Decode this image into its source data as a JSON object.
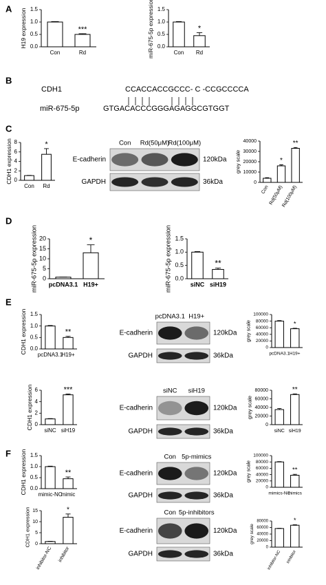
{
  "panels": [
    "A",
    "B",
    "C",
    "D",
    "E",
    "F"
  ],
  "sequence": {
    "rows": [
      {
        "name": "CDH1",
        "seq": "CCACCACCGCCC- C -CCGCCCCA"
      },
      {
        "name": "miR-675-5p",
        "seq": "GTGACACCCGGGAGAGGCGTGGT"
      }
    ]
  },
  "blots": [
    {
      "lanes": [
        "Con",
        "Rd(50μM)",
        "Rd(100μM)"
      ],
      "rows": [
        "E-cadherin",
        "GAPDH"
      ],
      "sizes": [
        "120kDa",
        "36kDa"
      ]
    },
    {
      "lanes": [
        "pcDNA3.1",
        "H19+"
      ],
      "rows": [
        "E-cadherin",
        "GAPDH"
      ],
      "sizes": [
        "120kDa",
        "36kDa"
      ]
    },
    {
      "lanes": [
        "siNC",
        "siH19"
      ],
      "rows": [
        "E-cadherin",
        "GAPDH"
      ],
      "sizes": [
        "120kDa",
        "36kDa"
      ]
    },
    {
      "lanes": [
        "Con",
        "5p-mimics"
      ],
      "rows": [
        "E-cadherin",
        "GAPDH"
      ],
      "sizes": [
        "120kDa",
        "36kDa"
      ]
    },
    {
      "lanes": [
        "Con",
        "5p-inhibitors"
      ],
      "rows": [
        "E-cadherin",
        "GAPDH"
      ],
      "sizes": [
        "120kDa",
        "36kDa"
      ]
    }
  ],
  "chart_data": [
    {
      "type": "bar",
      "y_label": "H19 expression",
      "categories": [
        "Con",
        "Rd"
      ],
      "values": [
        1.0,
        0.5
      ],
      "errors": [
        0.02,
        0.03
      ],
      "significance": [
        null,
        "***"
      ],
      "color": "#ffffff",
      "ylim": [
        0,
        1.5
      ],
      "yticks": [
        {
          "value": 0,
          "label": "0.0"
        },
        0.5,
        {
          "value": 1,
          "label": "1.0"
        },
        1.5
      ]
    },
    {
      "type": "bar",
      "y_label": "miR-675-5p expression",
      "categories": [
        "Con",
        "Rd"
      ],
      "values": [
        1.0,
        0.45
      ],
      "errors": [
        0.02,
        0.12
      ],
      "significance": [
        null,
        "*"
      ],
      "color": "#ffffff",
      "ylim": [
        0,
        1.5
      ],
      "yticks": [
        {
          "value": 0,
          "label": "0.0"
        },
        0.5,
        {
          "value": 1,
          "label": "1.0"
        },
        1.5
      ]
    },
    {
      "type": "bar",
      "y_label": "CDH1 expression",
      "categories": [
        "Con",
        "Rd"
      ],
      "values": [
        1.0,
        5.5
      ],
      "errors": [
        0.05,
        1.2
      ],
      "significance": [
        null,
        "*"
      ],
      "color": "#ffffff",
      "ylim": [
        0,
        8
      ],
      "yticks": [
        0,
        2,
        4,
        6,
        8
      ]
    },
    {
      "type": "bar",
      "y_label": "grey scale",
      "categories": [
        "Con",
        "Rd(50μM)",
        "Rd(100μM)"
      ],
      "values": [
        4000,
        16000,
        33000
      ],
      "errors": [
        500,
        1000,
        800
      ],
      "significance": [
        null,
        "*",
        "**"
      ],
      "color": "#ffffff",
      "ylim": [
        0,
        40000
      ],
      "yticks": [
        0,
        10000,
        20000,
        30000,
        40000
      ]
    },
    {
      "type": "bar",
      "y_label": "miR-675-5p expression",
      "categories": [
        "pcDNA3.1",
        "H19+"
      ],
      "values": [
        0.8,
        13
      ],
      "errors": [
        0.1,
        4
      ],
      "significance": [
        null,
        "*"
      ],
      "color": "#ffffff",
      "ylim": [
        0,
        20
      ],
      "yticks": [
        0,
        5,
        10,
        15,
        20
      ]
    },
    {
      "type": "bar",
      "y_label": "miR-675-5p expression",
      "categories": [
        "siNC",
        "siH19"
      ],
      "values": [
        1.0,
        0.35
      ],
      "errors": [
        0.02,
        0.05
      ],
      "significance": [
        null,
        "**"
      ],
      "color": "#ffffff",
      "ylim": [
        0,
        1.5
      ],
      "yticks": [
        {
          "value": 0,
          "label": "0.0"
        },
        0.5,
        {
          "value": 1,
          "label": "1.0"
        },
        1.5
      ]
    },
    {
      "type": "bar",
      "y_label": "CDH1 expression",
      "categories": [
        "pcDNA3.1",
        "H19+"
      ],
      "values": [
        1.0,
        0.5
      ],
      "errors": [
        0.02,
        0.05
      ],
      "significance": [
        null,
        "**"
      ],
      "color": "#ffffff",
      "ylim": [
        0,
        1.5
      ],
      "yticks": [
        {
          "value": 0,
          "label": "0.0"
        },
        0.5,
        {
          "value": 1,
          "label": "1.0"
        },
        1.5
      ]
    },
    {
      "type": "bar",
      "y_label": "grey scale",
      "categories": [
        "pcDNA3.1",
        "H19+"
      ],
      "values": [
        80000,
        57000
      ],
      "errors": [
        1500,
        1500
      ],
      "significance": [
        null,
        "*"
      ],
      "color": "#ffffff",
      "ylim": [
        0,
        100000
      ],
      "yticks": [
        0,
        20000,
        40000,
        60000,
        80000,
        100000
      ]
    },
    {
      "type": "bar",
      "y_label": "CDH1 expression",
      "categories": [
        "siNC",
        "siH19"
      ],
      "values": [
        1.0,
        5.2
      ],
      "errors": [
        0.05,
        0.15
      ],
      "significance": [
        null,
        "***"
      ],
      "color": "#ffffff",
      "ylim": [
        0,
        6
      ],
      "yticks": [
        0,
        2,
        4,
        6
      ]
    },
    {
      "type": "bar",
      "y_label": "grey scale",
      "categories": [
        "siNC",
        "siH19"
      ],
      "values": [
        35000,
        70000
      ],
      "errors": [
        2500,
        1500
      ],
      "significance": [
        null,
        "**"
      ],
      "color": "#ffffff",
      "ylim": [
        0,
        80000
      ],
      "yticks": [
        0,
        20000,
        40000,
        60000,
        80000
      ]
    },
    {
      "type": "bar",
      "y_label": "CDH1 expression",
      "categories": [
        "mimic-NC",
        "mimic"
      ],
      "values": [
        1.0,
        0.45
      ],
      "errors": [
        0.02,
        0.08
      ],
      "significance": [
        null,
        "**"
      ],
      "color": "#ffffff",
      "ylim": [
        0,
        1.5
      ],
      "yticks": [
        {
          "value": 0,
          "label": "0.0"
        },
        0.5,
        {
          "value": 1,
          "label": "1.0"
        },
        1.5
      ]
    },
    {
      "type": "bar",
      "y_label": "grey scale",
      "categories": [
        "mimics-NC",
        "mimics"
      ],
      "values": [
        80000,
        38000
      ],
      "errors": [
        1000,
        3000
      ],
      "significance": [
        null,
        "**"
      ],
      "color": "#ffffff",
      "ylim": [
        0,
        100000
      ],
      "yticks": [
        0,
        20000,
        40000,
        60000,
        80000,
        100000
      ]
    },
    {
      "type": "bar",
      "y_label": "CDH1 expression",
      "categories": [
        "inhibitor-NC",
        "inhibitor"
      ],
      "values": [
        1.0,
        12
      ],
      "errors": [
        0.1,
        1.5
      ],
      "significance": [
        null,
        "*"
      ],
      "color": "#ffffff",
      "ylim": [
        0,
        15
      ],
      "yticks": [
        0,
        5,
        10,
        15
      ]
    },
    {
      "type": "bar",
      "y_label": "grey scale",
      "categories": [
        "inhibitor-NC",
        "inhibitor"
      ],
      "values": [
        57000,
        67000
      ],
      "errors": [
        800,
        1500
      ],
      "significance": [
        null,
        "*"
      ],
      "color": "#ffffff",
      "ylim": [
        0,
        80000
      ],
      "yticks": [
        0,
        20000,
        40000,
        60000,
        80000
      ]
    }
  ]
}
